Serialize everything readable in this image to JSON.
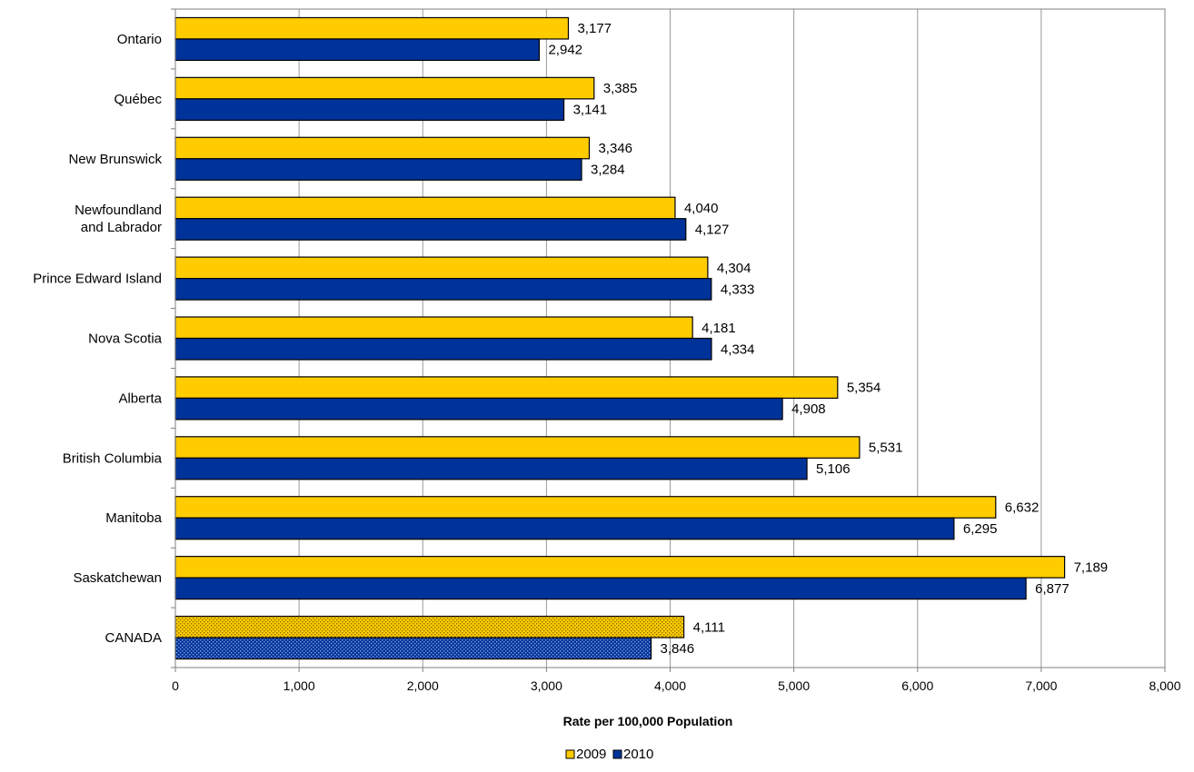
{
  "chart_data": {
    "type": "bar",
    "orientation": "horizontal",
    "categories": [
      "Ontario",
      "Québec",
      "New Brunswick",
      "Newfoundland and Labrador",
      "Prince Edward Island",
      "Nova Scotia",
      "Alberta",
      "British Columbia",
      "Manitoba",
      "Saskatchewan",
      "CANADA"
    ],
    "category_label_lines": [
      [
        "Ontario"
      ],
      [
        "Québec"
      ],
      [
        "New Brunswick"
      ],
      [
        "Newfoundland",
        "and Labrador"
      ],
      [
        "Prince Edward Island"
      ],
      [
        "Nova Scotia"
      ],
      [
        "Alberta"
      ],
      [
        "British Columbia"
      ],
      [
        "Manitoba"
      ],
      [
        "Saskatchewan"
      ],
      [
        "CANADA"
      ]
    ],
    "series": [
      {
        "name": "2009",
        "color": "#FFCC00",
        "values": [
          3177,
          3385,
          3346,
          4040,
          4304,
          4181,
          5354,
          5531,
          6632,
          7189,
          4111
        ],
        "labels": [
          "3,177",
          "3,385",
          "3,346",
          "4,040",
          "4,304",
          "4,181",
          "5,354",
          "5,531",
          "6,632",
          "7,189",
          "4,111"
        ]
      },
      {
        "name": "2010",
        "color": "#003399",
        "values": [
          2942,
          3141,
          3284,
          4127,
          4333,
          4334,
          4908,
          5106,
          6295,
          6877,
          3846
        ],
        "labels": [
          "2,942",
          "3,141",
          "3,284",
          "4,127",
          "4,333",
          "4,334",
          "4,908",
          "5,106",
          "6,295",
          "6,877",
          "3,846"
        ]
      }
    ],
    "patterned_category": "CANADA",
    "xlabel": "Rate per 100,000 Population",
    "xlim": [
      0,
      8000
    ],
    "ticks": [
      0,
      1000,
      2000,
      3000,
      4000,
      5000,
      6000,
      7000,
      8000
    ],
    "tick_labels": [
      "0",
      "1,000",
      "2,000",
      "3,000",
      "4,000",
      "5,000",
      "6,000",
      "7,000",
      "8,000"
    ],
    "grid": true,
    "legend_placement": "bottom-center"
  }
}
